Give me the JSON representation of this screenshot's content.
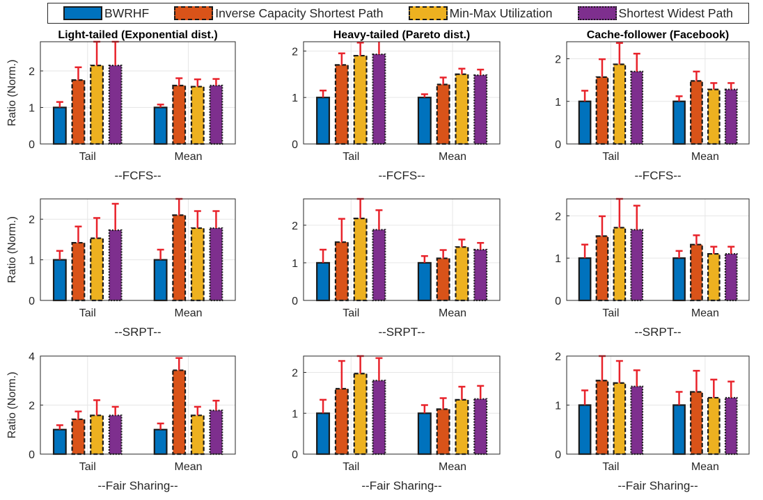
{
  "legend": {
    "items": [
      {
        "label": "BWRHF",
        "color": "#0072BD",
        "border": "solid"
      },
      {
        "label": "Inverse Capacity Shortest Path",
        "color": "#D95319",
        "border": "dashed"
      },
      {
        "label": "Min-Max Utilization",
        "color": "#EDB120",
        "border": "dashed"
      },
      {
        "label": "Shortest Widest Path",
        "color": "#7E2F8E",
        "border": "dotted"
      }
    ]
  },
  "colors": {
    "error_bar": "#E8232B",
    "axis": "#262626",
    "grid": "#E6E6E6"
  },
  "chart_data": [
    {
      "type": "bar",
      "title": "Light-tailed (Exponential dist.)",
      "xlabel": "--FCFS--",
      "ylabel": "Ratio (Norm.)",
      "categories": [
        "Tail",
        "Mean"
      ],
      "ylim": [
        0,
        2.8
      ],
      "yticks": [
        0,
        1,
        2
      ],
      "grid": true,
      "series": [
        {
          "name": "BWRHF",
          "values": [
            1.0,
            1.0
          ],
          "errors": [
            0.15,
            0.08
          ]
        },
        {
          "name": "Inverse Capacity Shortest Path",
          "values": [
            1.75,
            1.6
          ],
          "errors": [
            0.35,
            0.2
          ]
        },
        {
          "name": "Min-Max Utilization",
          "values": [
            2.15,
            1.57
          ],
          "errors": [
            0.65,
            0.2
          ]
        },
        {
          "name": "Shortest Widest Path",
          "values": [
            2.15,
            1.6
          ],
          "errors": [
            0.65,
            0.18
          ]
        }
      ]
    },
    {
      "type": "bar",
      "title": "Heavy-tailed (Pareto dist.)",
      "xlabel": "--FCFS--",
      "ylabel": "",
      "categories": [
        "Tail",
        "Mean"
      ],
      "ylim": [
        0,
        2.2
      ],
      "yticks": [
        0,
        1,
        2
      ],
      "grid": true,
      "series": [
        {
          "name": "BWRHF",
          "values": [
            1.0,
            1.0
          ],
          "errors": [
            0.15,
            0.07
          ]
        },
        {
          "name": "Inverse Capacity Shortest Path",
          "values": [
            1.7,
            1.28
          ],
          "errors": [
            0.25,
            0.15
          ]
        },
        {
          "name": "Min-Max Utilization",
          "values": [
            1.9,
            1.5
          ],
          "errors": [
            0.28,
            0.12
          ]
        },
        {
          "name": "Shortest Widest Path",
          "values": [
            1.93,
            1.48
          ],
          "errors": [
            0.33,
            0.12
          ]
        }
      ]
    },
    {
      "type": "bar",
      "title": "Cache-follower (Facebook)",
      "xlabel": "--FCFS--",
      "ylabel": "",
      "categories": [
        "Tail",
        "Mean"
      ],
      "ylim": [
        0,
        2.4
      ],
      "yticks": [
        0,
        1,
        2
      ],
      "grid": true,
      "series": [
        {
          "name": "BWRHF",
          "values": [
            1.0,
            1.0
          ],
          "errors": [
            0.25,
            0.12
          ]
        },
        {
          "name": "Inverse Capacity Shortest Path",
          "values": [
            1.57,
            1.48
          ],
          "errors": [
            0.42,
            0.22
          ]
        },
        {
          "name": "Min-Max Utilization",
          "values": [
            1.87,
            1.28
          ],
          "errors": [
            0.5,
            0.15
          ]
        },
        {
          "name": "Shortest Widest Path",
          "values": [
            1.7,
            1.28
          ],
          "errors": [
            0.42,
            0.15
          ]
        }
      ]
    },
    {
      "type": "bar",
      "title": "",
      "xlabel": "--SRPT--",
      "ylabel": "Ratio (Norm.)",
      "categories": [
        "Tail",
        "Mean"
      ],
      "ylim": [
        0,
        2.5
      ],
      "yticks": [
        0,
        1,
        2
      ],
      "grid": true,
      "series": [
        {
          "name": "BWRHF",
          "values": [
            1.0,
            1.0
          ],
          "errors": [
            0.22,
            0.25
          ]
        },
        {
          "name": "Inverse Capacity Shortest Path",
          "values": [
            1.42,
            2.1
          ],
          "errors": [
            0.4,
            0.4
          ]
        },
        {
          "name": "Min-Max Utilization",
          "values": [
            1.53,
            1.78
          ],
          "errors": [
            0.5,
            0.42
          ]
        },
        {
          "name": "Shortest Widest Path",
          "values": [
            1.73,
            1.78
          ],
          "errors": [
            0.65,
            0.42
          ]
        }
      ]
    },
    {
      "type": "bar",
      "title": "",
      "xlabel": "--SRPT--",
      "ylabel": "",
      "categories": [
        "Tail",
        "Mean"
      ],
      "ylim": [
        0,
        2.7
      ],
      "yticks": [
        0,
        1,
        2
      ],
      "grid": true,
      "series": [
        {
          "name": "BWRHF",
          "values": [
            1.0,
            1.0
          ],
          "errors": [
            0.35,
            0.18
          ]
        },
        {
          "name": "Inverse Capacity Shortest Path",
          "values": [
            1.55,
            1.12
          ],
          "errors": [
            0.62,
            0.22
          ]
        },
        {
          "name": "Min-Max Utilization",
          "values": [
            2.18,
            1.42
          ],
          "errors": [
            0.52,
            0.2
          ]
        },
        {
          "name": "Shortest Widest Path",
          "values": [
            1.88,
            1.35
          ],
          "errors": [
            0.52,
            0.18
          ]
        }
      ]
    },
    {
      "type": "bar",
      "title": "",
      "xlabel": "--SRPT--",
      "ylabel": "",
      "categories": [
        "Tail",
        "Mean"
      ],
      "ylim": [
        0,
        2.4
      ],
      "yticks": [
        0,
        1,
        2
      ],
      "grid": true,
      "series": [
        {
          "name": "BWRHF",
          "values": [
            1.0,
            1.0
          ],
          "errors": [
            0.32,
            0.17
          ]
        },
        {
          "name": "Inverse Capacity Shortest Path",
          "values": [
            1.52,
            1.32
          ],
          "errors": [
            0.47,
            0.22
          ]
        },
        {
          "name": "Min-Max Utilization",
          "values": [
            1.72,
            1.1
          ],
          "errors": [
            0.68,
            0.17
          ]
        },
        {
          "name": "Shortest Widest Path",
          "values": [
            1.67,
            1.1
          ],
          "errors": [
            0.57,
            0.17
          ]
        }
      ]
    },
    {
      "type": "bar",
      "title": "",
      "xlabel": "--Fair Sharing--",
      "ylabel": "Ratio (Norm.)",
      "categories": [
        "Tail",
        "Mean"
      ],
      "ylim": [
        0,
        4
      ],
      "yticks": [
        0,
        2,
        4
      ],
      "grid": true,
      "series": [
        {
          "name": "BWRHF",
          "values": [
            1.0,
            1.0
          ],
          "errors": [
            0.18,
            0.25
          ]
        },
        {
          "name": "Inverse Capacity Shortest Path",
          "values": [
            1.42,
            3.42
          ],
          "errors": [
            0.32,
            0.5
          ]
        },
        {
          "name": "Min-Max Utilization",
          "values": [
            1.58,
            1.58
          ],
          "errors": [
            0.62,
            0.35
          ]
        },
        {
          "name": "Shortest Widest Path",
          "values": [
            1.58,
            1.78
          ],
          "errors": [
            0.35,
            0.4
          ]
        }
      ]
    },
    {
      "type": "bar",
      "title": "",
      "xlabel": "--Fair Sharing--",
      "ylabel": "",
      "categories": [
        "Tail",
        "Mean"
      ],
      "ylim": [
        0,
        2.4
      ],
      "yticks": [
        0,
        1,
        2
      ],
      "grid": true,
      "series": [
        {
          "name": "BWRHF",
          "values": [
            1.0,
            1.0
          ],
          "errors": [
            0.33,
            0.2
          ]
        },
        {
          "name": "Inverse Capacity Shortest Path",
          "values": [
            1.6,
            1.1
          ],
          "errors": [
            0.68,
            0.27
          ]
        },
        {
          "name": "Min-Max Utilization",
          "values": [
            1.97,
            1.33
          ],
          "errors": [
            0.43,
            0.32
          ]
        },
        {
          "name": "Shortest Widest Path",
          "values": [
            1.8,
            1.35
          ],
          "errors": [
            0.55,
            0.32
          ]
        }
      ]
    },
    {
      "type": "bar",
      "title": "",
      "xlabel": "--Fair Sharing--",
      "ylabel": "",
      "categories": [
        "Tail",
        "Mean"
      ],
      "ylim": [
        0,
        2
      ],
      "yticks": [
        0,
        1,
        2
      ],
      "grid": true,
      "series": [
        {
          "name": "BWRHF",
          "values": [
            1.0,
            1.0
          ],
          "errors": [
            0.3,
            0.27
          ]
        },
        {
          "name": "Inverse Capacity Shortest Path",
          "values": [
            1.5,
            1.27
          ],
          "errors": [
            0.5,
            0.43
          ]
        },
        {
          "name": "Min-Max Utilization",
          "values": [
            1.45,
            1.15
          ],
          "errors": [
            0.45,
            0.37
          ]
        },
        {
          "name": "Shortest Widest Path",
          "values": [
            1.38,
            1.15
          ],
          "errors": [
            0.33,
            0.33
          ]
        }
      ]
    }
  ]
}
